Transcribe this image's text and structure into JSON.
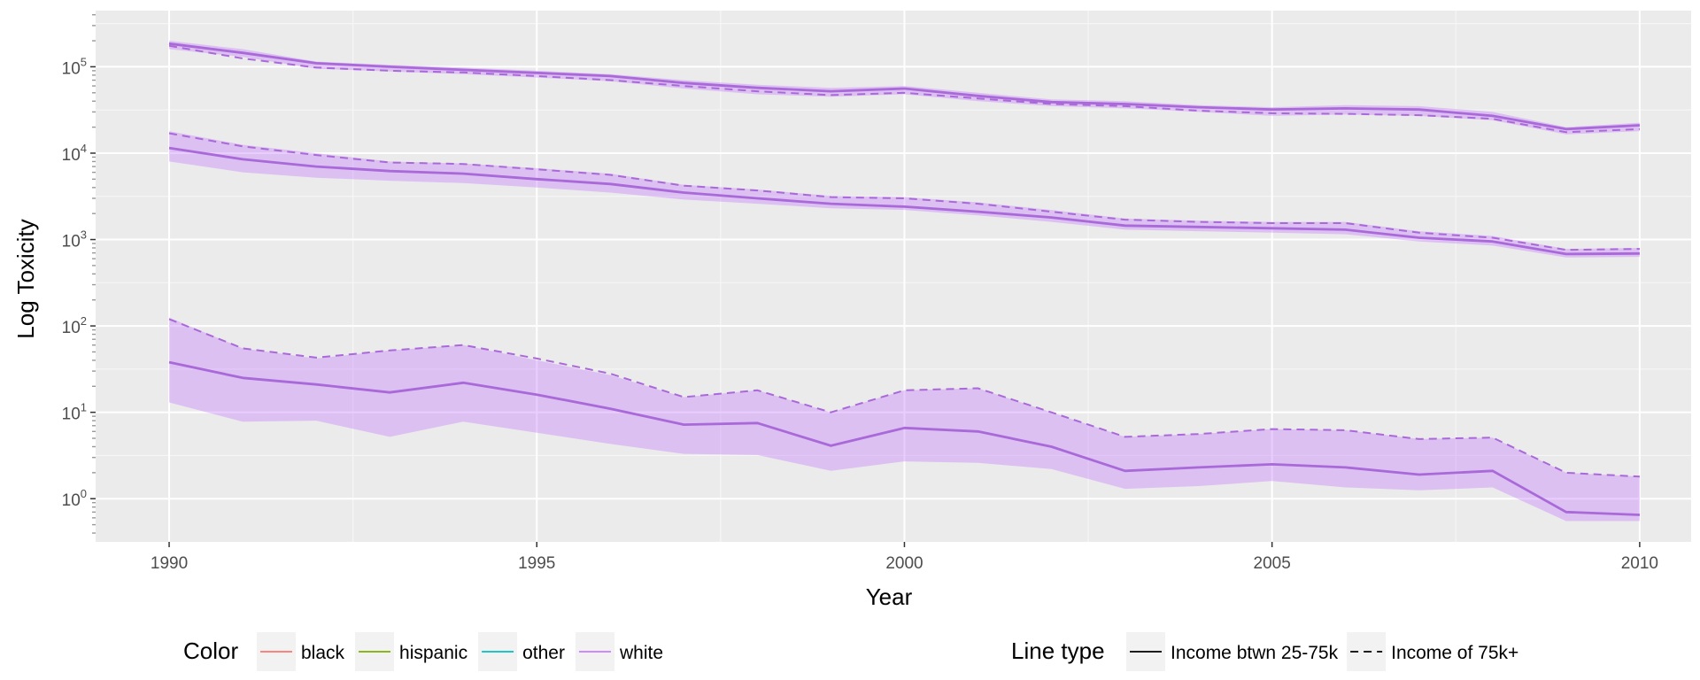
{
  "chart_data": {
    "type": "line",
    "xlabel": "Year",
    "ylabel": "Log Toxicity",
    "y_scale": "log10",
    "xlim": [
      1989.0,
      2010.7
    ],
    "ylim_log10": [
      -0.5,
      5.65
    ],
    "x_ticks": [
      1990,
      1995,
      2000,
      2005,
      2010
    ],
    "y_ticks": [
      {
        "base": "10",
        "exp": "0",
        "log10": 0
      },
      {
        "base": "10",
        "exp": "1",
        "log10": 1
      },
      {
        "base": "10",
        "exp": "2",
        "log10": 2
      },
      {
        "base": "10",
        "exp": "3",
        "log10": 3
      },
      {
        "base": "10",
        "exp": "4",
        "log10": 4
      },
      {
        "base": "10",
        "exp": "5",
        "log10": 5
      }
    ],
    "grid": true,
    "legend_placement": "bottom",
    "x": [
      1990,
      1991,
      1992,
      1993,
      1994,
      1995,
      1996,
      1997,
      1998,
      1999,
      2000,
      2001,
      2002,
      2003,
      2004,
      2005,
      2006,
      2007,
      2008,
      2009,
      2010
    ],
    "bands": [
      {
        "color": "#C77CFF",
        "low": [
          160000,
          130000,
          95000,
          88000,
          82000,
          75000,
          68000,
          56000,
          48000,
          45000,
          48000,
          40000,
          35000,
          33000,
          30000,
          27000,
          28000,
          27000,
          24000,
          16500,
          18000
        ],
        "high": [
          200000,
          160000,
          115000,
          105000,
          98000,
          90000,
          82000,
          70000,
          62000,
          57000,
          60000,
          50000,
          42000,
          40000,
          36000,
          34000,
          36000,
          35000,
          30000,
          20000,
          22500
        ]
      },
      {
        "color": "#C77CFF",
        "low": [
          8000,
          6000,
          5200,
          4800,
          4500,
          4000,
          3500,
          2900,
          2600,
          2300,
          2200,
          1900,
          1600,
          1300,
          1250,
          1200,
          1150,
          950,
          850,
          620,
          630
        ],
        "high": [
          18000,
          12500,
          10000,
          8000,
          7600,
          6700,
          5800,
          4300,
          3800,
          3200,
          3100,
          2700,
          2200,
          1750,
          1650,
          1600,
          1600,
          1250,
          1100,
          780,
          800
        ]
      },
      {
        "color": "#C77CFF",
        "low": [
          13,
          7.8,
          8,
          5.2,
          7.8,
          5.8,
          4.3,
          3.3,
          3.2,
          2.1,
          2.7,
          2.6,
          2.2,
          1.3,
          1.4,
          1.6,
          1.35,
          1.25,
          1.35,
          0.55,
          0.55
        ],
        "high": [
          125,
          55,
          42,
          52,
          60,
          40,
          27,
          15,
          18,
          10,
          18,
          19,
          10,
          5.2,
          5.6,
          6.4,
          6.2,
          4.9,
          5.1,
          2.0,
          1.8
        ]
      }
    ],
    "series": [
      {
        "color": "#C77CFF",
        "linetype": "solid",
        "values": [
          185000,
          145000,
          110000,
          100000,
          92000,
          85000,
          78000,
          65000,
          57000,
          52000,
          56000,
          46000,
          39000,
          37000,
          34000,
          32000,
          33000,
          32000,
          27000,
          19000,
          21000
        ]
      },
      {
        "color": "#C77CFF",
        "linetype": "dashed",
        "values": [
          175000,
          125000,
          98000,
          90000,
          86000,
          78000,
          70000,
          60000,
          52000,
          47000,
          50000,
          43000,
          37000,
          35000,
          31000,
          29000,
          28500,
          27500,
          25000,
          17500,
          19000
        ]
      },
      {
        "color": "#C77CFF",
        "linetype": "solid",
        "values": [
          11500,
          8500,
          7000,
          6200,
          5800,
          5000,
          4400,
          3500,
          3000,
          2600,
          2400,
          2100,
          1800,
          1450,
          1400,
          1350,
          1300,
          1050,
          950,
          680,
          690
        ]
      },
      {
        "color": "#C77CFF",
        "linetype": "dashed",
        "values": [
          17000,
          12000,
          9500,
          7800,
          7500,
          6500,
          5600,
          4200,
          3700,
          3100,
          3000,
          2600,
          2100,
          1700,
          1600,
          1550,
          1550,
          1200,
          1050,
          760,
          780
        ]
      },
      {
        "color": "#C77CFF",
        "linetype": "solid",
        "values": [
          38,
          25,
          21,
          17,
          22,
          16,
          11,
          7.2,
          7.5,
          4.1,
          6.6,
          6.0,
          4.0,
          2.1,
          2.3,
          2.5,
          2.3,
          1.9,
          2.1,
          0.7,
          0.65
        ]
      },
      {
        "color": "#C77CFF",
        "linetype": "dashed",
        "values": [
          120,
          55,
          43,
          52,
          60,
          42,
          28,
          15,
          18,
          10,
          18,
          19,
          10,
          5.2,
          5.6,
          6.4,
          6.2,
          4.9,
          5.1,
          2.0,
          1.8
        ]
      }
    ],
    "legend_color": {
      "title": "Color",
      "items": [
        {
          "label": "black",
          "color": "#F8766D"
        },
        {
          "label": "hispanic",
          "color": "#7CAE00"
        },
        {
          "label": "other",
          "color": "#00BFC4"
        },
        {
          "label": "white",
          "color": "#C77CFF"
        }
      ]
    },
    "legend_linetype": {
      "title": "Line type",
      "items": [
        {
          "label": "Income btwn 25-75k",
          "linetype": "solid"
        },
        {
          "label": "Income of 75k+",
          "linetype": "dashed"
        }
      ]
    }
  }
}
